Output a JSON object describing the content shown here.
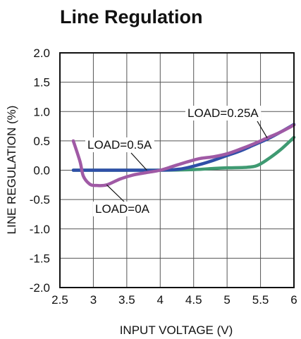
{
  "chart_data": {
    "type": "line",
    "title": "Line Regulation",
    "xlabel": "INPUT VOLTAGE (V)",
    "ylabel": "LINE REGULATION (%)",
    "xlim": [
      2.5,
      6
    ],
    "ylim": [
      -2.0,
      2.0
    ],
    "xticks": [
      2.5,
      3,
      3.5,
      4,
      4.5,
      5,
      5.5,
      6
    ],
    "xtick_labels": [
      "2.5",
      "3",
      "3.5",
      "4",
      "4.5",
      "5",
      "5.5",
      "6"
    ],
    "yticks": [
      -2.0,
      -1.5,
      -1.0,
      -0.5,
      0.0,
      0.5,
      1.0,
      1.5,
      2.0
    ],
    "ytick_labels": [
      "-2.0",
      "-1.5",
      "-1.0",
      "-0.5",
      "0.0",
      "0.5",
      "1.0",
      "1.5",
      "2.0"
    ],
    "grid": true,
    "series": [
      {
        "name": "LOAD=0A",
        "color": "#a05aa5",
        "points": [
          [
            2.7,
            0.5
          ],
          [
            2.8,
            0.15
          ],
          [
            2.85,
            -0.1
          ],
          [
            2.95,
            -0.24
          ],
          [
            3.05,
            -0.26
          ],
          [
            3.2,
            -0.25
          ],
          [
            3.4,
            -0.15
          ],
          [
            3.6,
            -0.08
          ],
          [
            3.8,
            -0.04
          ],
          [
            4.0,
            0.0
          ],
          [
            4.2,
            0.07
          ],
          [
            4.4,
            0.14
          ],
          [
            4.6,
            0.2
          ],
          [
            4.8,
            0.23
          ],
          [
            5.0,
            0.28
          ],
          [
            5.2,
            0.36
          ],
          [
            5.4,
            0.45
          ],
          [
            5.6,
            0.55
          ],
          [
            5.8,
            0.65
          ],
          [
            6.0,
            0.77
          ]
        ]
      },
      {
        "name": "LOAD=0.25A",
        "color": "#2f4fa8",
        "points": [
          [
            2.7,
            0.0
          ],
          [
            3.0,
            0.0
          ],
          [
            3.5,
            0.0
          ],
          [
            4.0,
            0.0
          ],
          [
            4.3,
            0.02
          ],
          [
            4.6,
            0.1
          ],
          [
            4.8,
            0.17
          ],
          [
            5.0,
            0.25
          ],
          [
            5.2,
            0.33
          ],
          [
            5.4,
            0.43
          ],
          [
            5.6,
            0.53
          ],
          [
            5.8,
            0.65
          ],
          [
            6.0,
            0.78
          ]
        ]
      },
      {
        "name": "LOAD=0.5A",
        "color": "#3f9a72",
        "points": [
          [
            2.7,
            0.0
          ],
          [
            3.0,
            0.0
          ],
          [
            3.5,
            0.0
          ],
          [
            4.0,
            0.0
          ],
          [
            4.5,
            0.01
          ],
          [
            4.8,
            0.03
          ],
          [
            5.0,
            0.04
          ],
          [
            5.3,
            0.05
          ],
          [
            5.45,
            0.08
          ],
          [
            5.6,
            0.18
          ],
          [
            5.8,
            0.35
          ],
          [
            6.0,
            0.56
          ]
        ]
      }
    ],
    "annotations": [
      {
        "text": "LOAD=0.25A",
        "target": [
          5.6,
          0.55
        ]
      },
      {
        "text": "LOAD=0.5A",
        "target": [
          3.8,
          0.0
        ]
      },
      {
        "text": "LOAD=0A",
        "target": [
          3.2,
          -0.25
        ]
      }
    ]
  }
}
